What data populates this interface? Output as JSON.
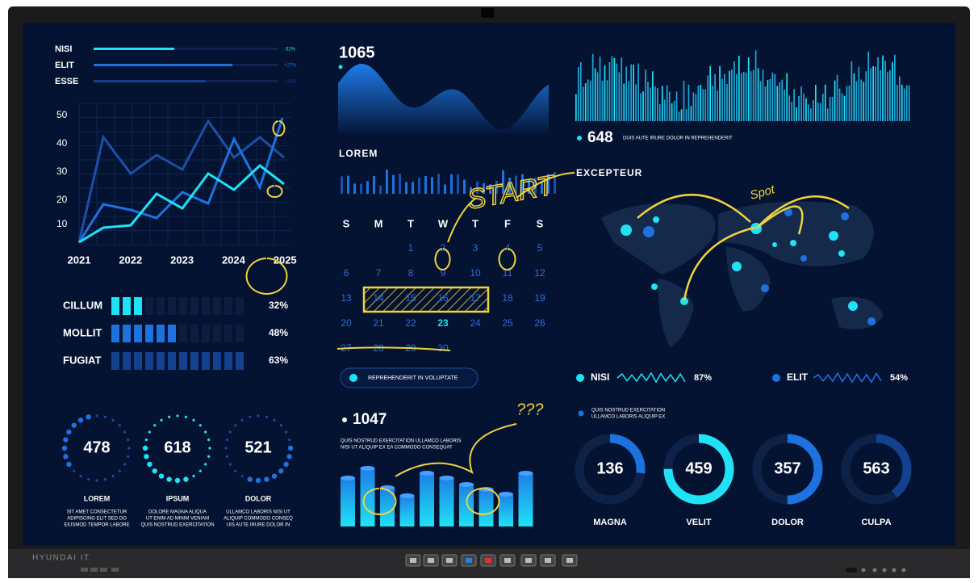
{
  "monitor": {
    "brand": "HYUNDAI IT"
  },
  "progress": [
    {
      "label": "NISI",
      "change": "-32%"
    },
    {
      "label": "ELIT",
      "change": "+27%"
    },
    {
      "label": "ESSE",
      "change": "+13%"
    }
  ],
  "line_chart": {
    "yticks": [
      50,
      40,
      30,
      20,
      10
    ],
    "xticks": [
      "2021",
      "2022",
      "2023",
      "2024",
      "2025"
    ]
  },
  "levels": [
    {
      "label": "CILLUM",
      "value": "32%"
    },
    {
      "label": "MOLLIT",
      "value": "48%"
    },
    {
      "label": "FUGIAT",
      "value": "63%"
    }
  ],
  "gauges": [
    {
      "value": 478,
      "label": "LOREM",
      "text": [
        "SIT AMET CONSECTETUR",
        "ADIPISCING ELIT SED DO",
        "EIUSMOD TEMPOR LABORE"
      ]
    },
    {
      "value": 618,
      "label": "IPSUM",
      "text": [
        "DOLORE MAGNA ALIQUA",
        "UT ENIM AD MINIM VENIAM",
        "QUIS NOSTRUD EXERCITATION"
      ]
    },
    {
      "value": 521,
      "label": "DOLOR",
      "text": [
        "ULLAMCO LABORIS NISI UT",
        "ALIQUIP COMMODO CONSEQ",
        "UIS AUTE IRURE DOLOR IN"
      ]
    }
  ],
  "wave": {
    "value": 1065
  },
  "sparkline": {
    "label": "LOREM"
  },
  "calendar": {
    "weekdays": [
      "S",
      "M",
      "T",
      "W",
      "T",
      "F",
      "S"
    ],
    "weeks": [
      [
        null,
        null,
        1,
        2,
        3,
        4,
        5
      ],
      [
        6,
        7,
        8,
        9,
        10,
        11,
        12
      ],
      [
        13,
        14,
        15,
        16,
        17,
        18,
        19
      ],
      [
        20,
        21,
        22,
        23,
        24,
        25,
        26
      ],
      [
        27,
        28,
        29,
        30,
        null,
        null,
        null
      ]
    ],
    "button": "REPREHENDERIT IN VOLUPTATE"
  },
  "bars": {
    "value": 1047,
    "text": [
      "QUIS NOSTRUD EXERCITATION ULLAMCO LABORIS",
      "NISI UT ALIQUIP EX EA COMMODO CONSEQUAT"
    ]
  },
  "histogram": {
    "value": 648,
    "text": "DUIS AUTE IRURE DOLOR IN REPREHENDERIT"
  },
  "map": {
    "title": "EXCEPTEUR",
    "legend": [
      {
        "label": "NISI",
        "value": "87%"
      },
      {
        "label": "ELIT",
        "value": "54%"
      }
    ],
    "note": [
      "QUIS NOSTRUD EXERCITATION",
      "ULLAMCO LABORIS ALIQUIP EX"
    ]
  },
  "donuts": [
    {
      "value": 136,
      "label": "MAGNA"
    },
    {
      "value": 459,
      "label": "VELIT"
    },
    {
      "value": 357,
      "label": "DOLOR"
    },
    {
      "value": 563,
      "label": "CULPA"
    }
  ],
  "annotations": [
    "START",
    "Spot",
    "???"
  ]
}
